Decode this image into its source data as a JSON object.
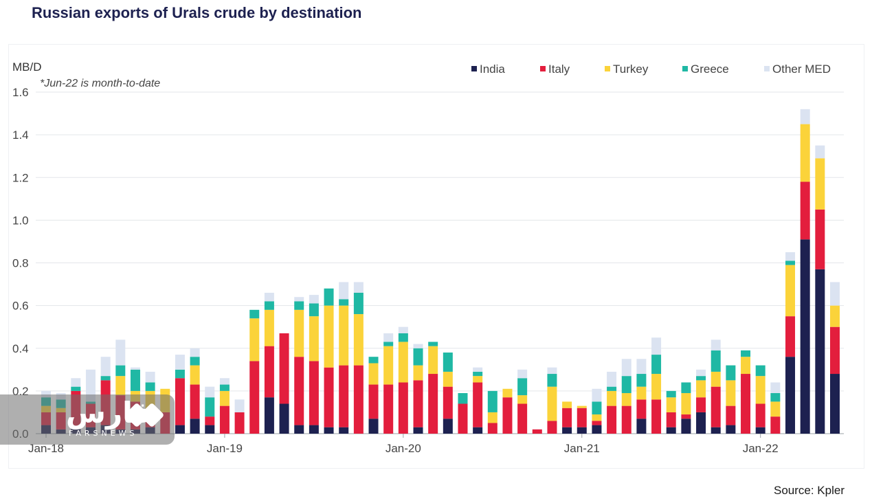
{
  "title": "Russian exports of Urals crude by destination",
  "source": "Source: Kpler",
  "watermark": {
    "logo_text": "فارس",
    "sub_text": "FARSNEWS"
  },
  "chart_data": {
    "type": "bar",
    "stacked": true,
    "ylabel": "MB/D",
    "note": "*Jun-22 is month-to-date",
    "ylim": [
      0,
      1.6
    ],
    "yticks": [
      "0.0",
      "0.2",
      "0.4",
      "0.6",
      "0.8",
      "1.0",
      "1.2",
      "1.4",
      "1.6"
    ],
    "xtick_labels": [
      {
        "label": "Jan-18",
        "index": 0
      },
      {
        "label": "Jan-19",
        "index": 12
      },
      {
        "label": "Jan-20",
        "index": 24
      },
      {
        "label": "Jan-21",
        "index": 36
      },
      {
        "label": "Jan-22",
        "index": 48
      }
    ],
    "categories": [
      "Jan-18",
      "Feb-18",
      "Mar-18",
      "Apr-18",
      "May-18",
      "Jun-18",
      "Jul-18",
      "Aug-18",
      "Sep-18",
      "Oct-18",
      "Nov-18",
      "Dec-18",
      "Jan-19",
      "Feb-19",
      "Mar-19",
      "Apr-19",
      "May-19",
      "Jun-19",
      "Jul-19",
      "Aug-19",
      "Sep-19",
      "Oct-19",
      "Nov-19",
      "Dec-19",
      "Jan-20",
      "Feb-20",
      "Mar-20",
      "Apr-20",
      "May-20",
      "Jun-20",
      "Jul-20",
      "Aug-20",
      "Sep-20",
      "Oct-20",
      "Nov-20",
      "Dec-20",
      "Jan-21",
      "Feb-21",
      "Mar-21",
      "Apr-21",
      "May-21",
      "Jun-21",
      "Jul-21",
      "Aug-21",
      "Sep-21",
      "Oct-21",
      "Nov-21",
      "Dec-21",
      "Jan-22",
      "Feb-22",
      "Mar-22",
      "Apr-22",
      "May-22",
      "Jun-22"
    ],
    "legend_position": "top-right",
    "grid": true,
    "series": [
      {
        "name": "India",
        "color": "#1d2150",
        "values": [
          0.04,
          0.02,
          0.03,
          0.03,
          0.04,
          0.02,
          0.02,
          0.03,
          0.0,
          0.04,
          0.07,
          0.04,
          0.0,
          0.0,
          0.0,
          0.17,
          0.14,
          0.04,
          0.04,
          0.03,
          0.03,
          0.0,
          0.07,
          0.0,
          0.0,
          0.03,
          0.0,
          0.07,
          0.0,
          0.03,
          0.0,
          0.0,
          0.0,
          0.0,
          0.0,
          0.03,
          0.03,
          0.04,
          0.0,
          0.0,
          0.07,
          0.0,
          0.03,
          0.07,
          0.1,
          0.03,
          0.04,
          0.0,
          0.03,
          0.0,
          0.36,
          0.91,
          0.77,
          0.28
        ]
      },
      {
        "name": "Italy",
        "color": "#e31e3d",
        "values": [
          0.06,
          0.08,
          0.17,
          0.11,
          0.21,
          0.16,
          0.13,
          0.03,
          0.1,
          0.22,
          0.16,
          0.04,
          0.13,
          0.1,
          0.34,
          0.24,
          0.33,
          0.32,
          0.3,
          0.28,
          0.29,
          0.32,
          0.16,
          0.23,
          0.24,
          0.22,
          0.28,
          0.15,
          0.14,
          0.21,
          0.05,
          0.17,
          0.14,
          0.02,
          0.06,
          0.09,
          0.09,
          0.02,
          0.13,
          0.13,
          0.09,
          0.16,
          0.07,
          0.02,
          0.07,
          0.19,
          0.09,
          0.28,
          0.11,
          0.08,
          0.19,
          0.27,
          0.28,
          0.22
        ]
      },
      {
        "name": "Turkey",
        "color": "#fbd33a",
        "values": [
          0.03,
          0.02,
          0.0,
          0.0,
          0.0,
          0.09,
          0.05,
          0.14,
          0.11,
          0.0,
          0.09,
          0.0,
          0.07,
          0.0,
          0.2,
          0.17,
          0.0,
          0.22,
          0.21,
          0.29,
          0.28,
          0.24,
          0.1,
          0.18,
          0.19,
          0.07,
          0.13,
          0.07,
          0.0,
          0.03,
          0.05,
          0.04,
          0.04,
          0.0,
          0.16,
          0.03,
          0.01,
          0.03,
          0.07,
          0.06,
          0.06,
          0.12,
          0.07,
          0.1,
          0.08,
          0.07,
          0.12,
          0.08,
          0.13,
          0.07,
          0.24,
          0.27,
          0.24,
          0.1
        ]
      },
      {
        "name": "Greece",
        "color": "#1fb8a4",
        "values": [
          0.04,
          0.04,
          0.02,
          0.01,
          0.02,
          0.05,
          0.1,
          0.04,
          0.0,
          0.04,
          0.04,
          0.09,
          0.03,
          0.0,
          0.04,
          0.04,
          0.0,
          0.04,
          0.06,
          0.08,
          0.03,
          0.1,
          0.03,
          0.02,
          0.04,
          0.08,
          0.02,
          0.09,
          0.05,
          0.02,
          0.1,
          0.0,
          0.08,
          0.0,
          0.06,
          0.0,
          0.0,
          0.06,
          0.02,
          0.08,
          0.06,
          0.09,
          0.03,
          0.05,
          0.02,
          0.1,
          0.07,
          0.03,
          0.05,
          0.04,
          0.02,
          0.0,
          0.0,
          0.0
        ]
      },
      {
        "name": "Other MED",
        "color": "#dbe3f1",
        "values": [
          0.03,
          0.03,
          0.04,
          0.15,
          0.09,
          0.12,
          0.01,
          0.05,
          0.0,
          0.07,
          0.04,
          0.05,
          0.03,
          0.06,
          0.0,
          0.04,
          0.0,
          0.02,
          0.04,
          0.0,
          0.08,
          0.05,
          0.0,
          0.04,
          0.03,
          0.02,
          0.0,
          0.0,
          0.0,
          0.02,
          0.0,
          0.0,
          0.04,
          0.0,
          0.03,
          0.0,
          0.0,
          0.06,
          0.07,
          0.08,
          0.07,
          0.08,
          0.0,
          0.0,
          0.03,
          0.05,
          0.0,
          0.0,
          0.0,
          0.05,
          0.04,
          0.07,
          0.06,
          0.11
        ]
      }
    ]
  }
}
